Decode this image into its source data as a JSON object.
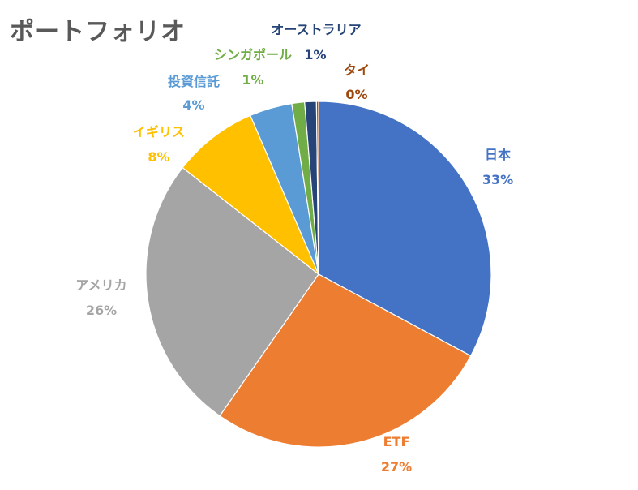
{
  "chart_data": {
    "type": "pie",
    "title": "ポートフォリオ",
    "slices": [
      {
        "name": "日本",
        "value": 33,
        "label": "33%",
        "color": "#4472C4"
      },
      {
        "name": "ETF",
        "value": 27,
        "label": "27%",
        "color": "#ED7D31"
      },
      {
        "name": "アメリカ",
        "value": 26,
        "label": "26%",
        "color": "#A5A5A5"
      },
      {
        "name": "イギリス",
        "value": 8,
        "label": "8%",
        "color": "#FFC000"
      },
      {
        "name": "投資信託",
        "value": 4,
        "label": "4%",
        "color": "#5B9BD5"
      },
      {
        "name": "シンガポール",
        "value": 1.2,
        "label": "1%",
        "color": "#70AD47"
      },
      {
        "name": "オーストラリア",
        "value": 1.1,
        "label": "1%",
        "color": "#264478"
      },
      {
        "name": "タイ",
        "value": 0.2,
        "label": "0%",
        "color": "#9E480E"
      }
    ],
    "legend": "none",
    "start_angle": "12 o'clock, clockwise"
  }
}
